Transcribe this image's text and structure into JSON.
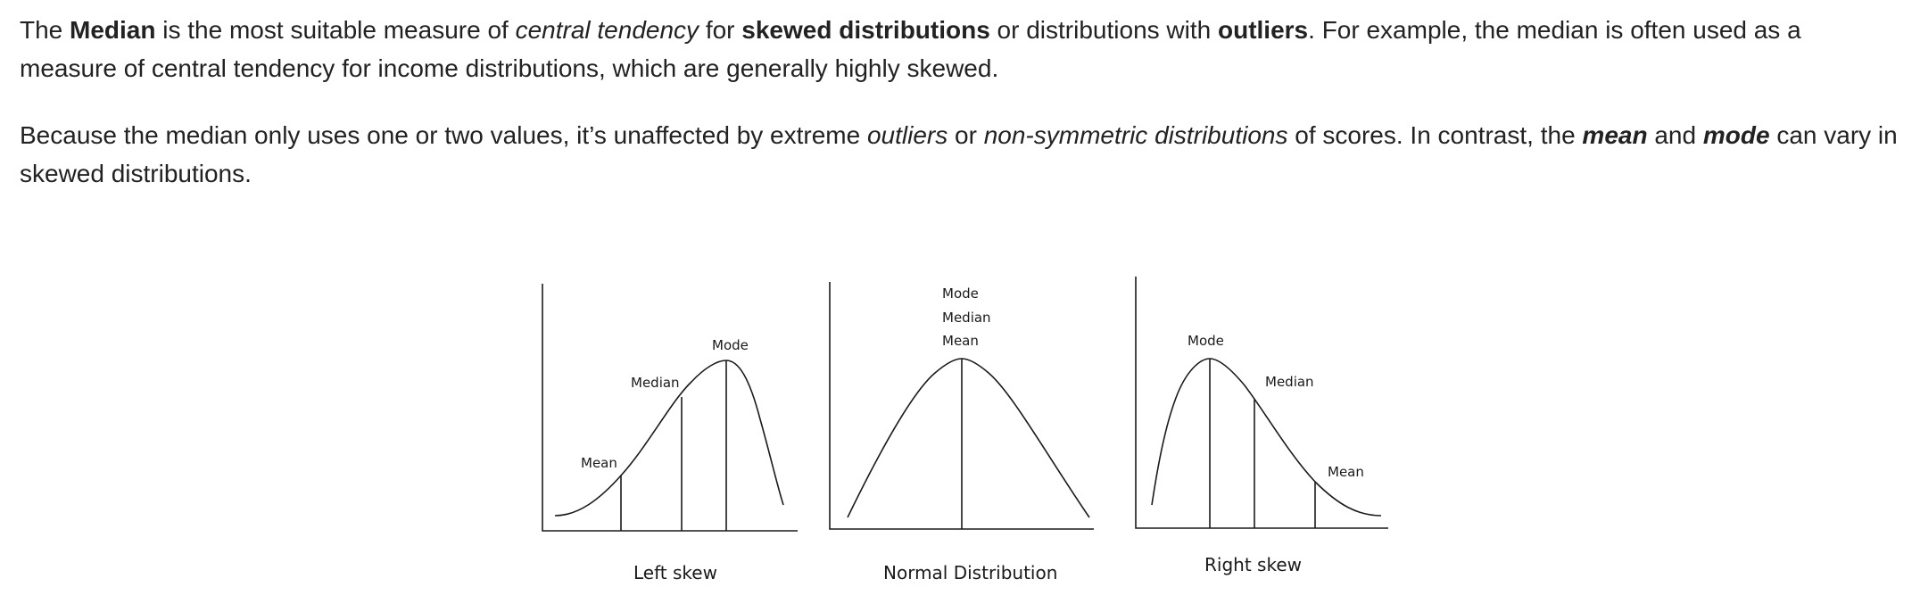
{
  "paragraph1": {
    "t1": "The ",
    "b1": "Median",
    "t2": " is the most suitable measure of ",
    "i1": "central tendency",
    "t3": " for ",
    "b2": "skewed distributions",
    "t4": " or distributions with ",
    "b3": "outliers",
    "t5": ". For example, the median is often used as a measure of central tendency for income distributions, which are generally highly skewed."
  },
  "paragraph2": {
    "t1": "Because the median only uses one or two values, it’s unaffected by extreme ",
    "i1": "outliers",
    "t2": " or ",
    "i2": "non-symmetric distributions",
    "t3": " of scores. In contrast, the ",
    "bi1": "mean",
    "t4": " and ",
    "bi2": "mode",
    "t5": " can vary in skewed distributions."
  },
  "figure": {
    "left_skew": {
      "caption": "Left skew",
      "mean_label": "Mean",
      "median_label": "Median",
      "mode_label": "Mode"
    },
    "normal": {
      "caption": "Normal Distribution",
      "mode_label": "Mode",
      "median_label": "Median",
      "mean_label": "Mean"
    },
    "right_skew": {
      "caption": "Right skew",
      "mode_label": "Mode",
      "median_label": "Median",
      "mean_label": "Mean"
    }
  }
}
